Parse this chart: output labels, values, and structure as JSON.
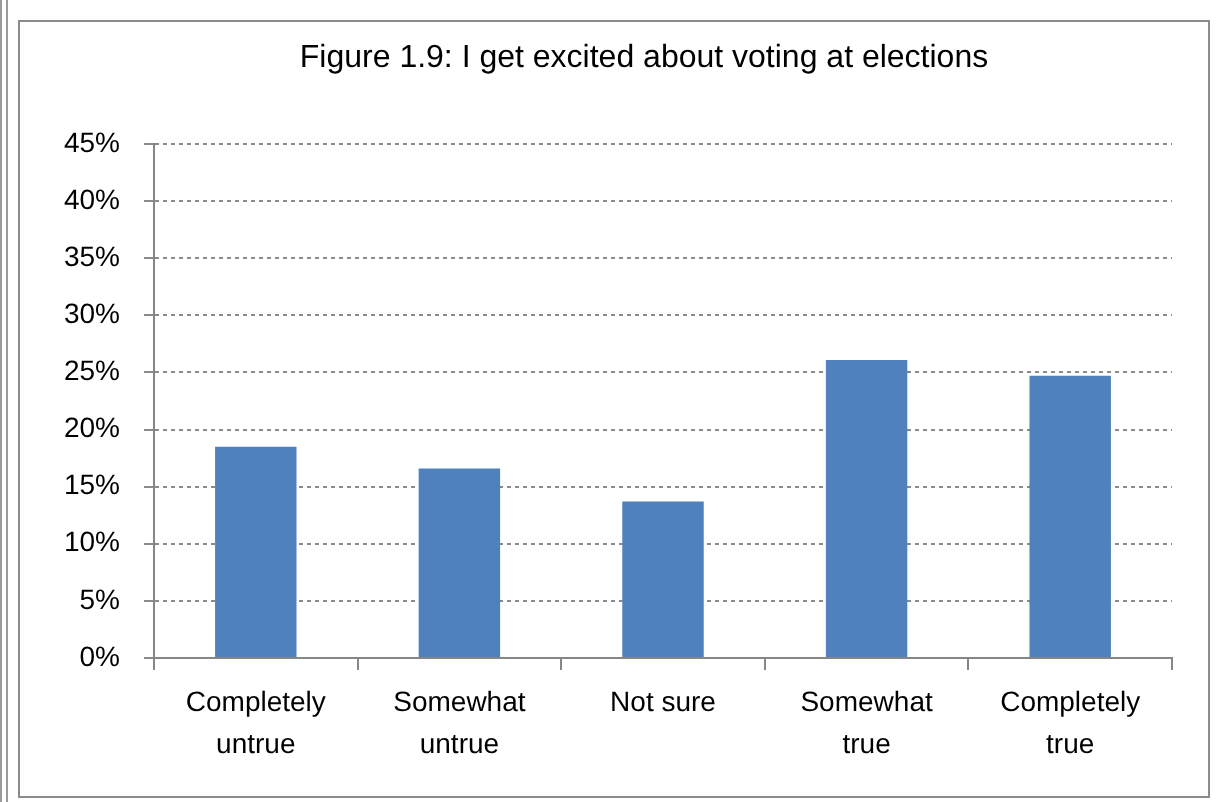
{
  "chart_data": {
    "type": "bar",
    "title": "Figure 1.9: I get excited about voting at elections",
    "categories": [
      "Completely untrue",
      "Somewhat untrue",
      "Not sure",
      "Somewhat true",
      "Completely true"
    ],
    "values": [
      18.5,
      16.6,
      13.7,
      26.1,
      24.7
    ],
    "color": "#4f81bd",
    "ylim": [
      0,
      45
    ],
    "yticks": [
      {
        "value": 0,
        "label": "0%"
      },
      {
        "value": 5,
        "label": "5%"
      },
      {
        "value": 10,
        "label": "10%"
      },
      {
        "value": 15,
        "label": "15%"
      },
      {
        "value": 20,
        "label": "20%"
      },
      {
        "value": 25,
        "label": "25%"
      },
      {
        "value": 30,
        "label": "30%"
      },
      {
        "value": 35,
        "label": "35%"
      },
      {
        "value": 40,
        "label": "40%"
      },
      {
        "value": 45,
        "label": "45%"
      }
    ],
    "grid": "y"
  }
}
